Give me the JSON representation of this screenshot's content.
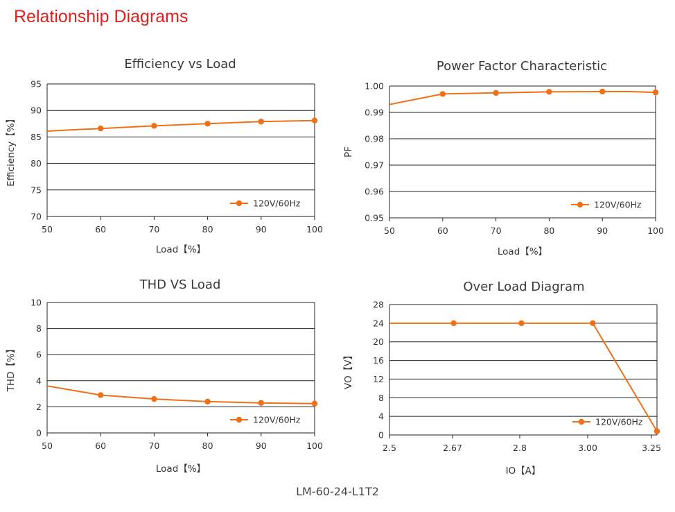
{
  "page": {
    "title": "Relationship Diagrams",
    "model": "LM-60-24-L1T2",
    "series_color": "#f07018",
    "title_color": "#e0201e"
  },
  "chart_data": [
    {
      "type": "line",
      "title": "Efficiency vs Load",
      "xlabel": "Load【%】",
      "ylabel": "Efficiency【%】",
      "xlim": [
        50,
        100
      ],
      "ylim": [
        70,
        95
      ],
      "xticks": [
        "50",
        "60",
        "70",
        "80",
        "90",
        "100"
      ],
      "yticks": [
        "70",
        "75",
        "80",
        "85",
        "90",
        "95"
      ],
      "grid": "horizontal",
      "legend_position": "bottom-right",
      "series": [
        {
          "name": "120V/60Hz",
          "line": [
            [
              50,
              86.1
            ],
            [
              60,
              86.6
            ],
            [
              70,
              87.1
            ],
            [
              80,
              87.5
            ],
            [
              90,
              87.9
            ],
            [
              100,
              88.1
            ]
          ],
          "markers": [
            [
              60,
              86.6
            ],
            [
              70,
              87.1
            ],
            [
              80,
              87.5
            ],
            [
              90,
              87.9
            ],
            [
              100,
              88.1
            ]
          ]
        }
      ]
    },
    {
      "type": "line",
      "title": "Power Factor Characteristic",
      "xlabel": "Load【%】",
      "ylabel": "PF",
      "xlim": [
        50,
        100
      ],
      "ylim": [
        0.95,
        1.0
      ],
      "xticks": [
        "50",
        "60",
        "70",
        "80",
        "90",
        "100"
      ],
      "yticks": [
        "0.95",
        "0.96",
        "0.97",
        "0.98",
        "0.99",
        "1.00"
      ],
      "grid": "horizontal",
      "legend_position": "bottom-right",
      "series": [
        {
          "name": "120V/60Hz",
          "line": [
            [
              50,
              0.993
            ],
            [
              60,
              0.997
            ],
            [
              70,
              0.9974
            ],
            [
              80,
              0.9978
            ],
            [
              90,
              0.9979
            ],
            [
              95,
              0.9979
            ],
            [
              100,
              0.9976
            ]
          ],
          "markers": [
            [
              60,
              0.997
            ],
            [
              70,
              0.9974
            ],
            [
              80,
              0.9978
            ],
            [
              90,
              0.9979
            ],
            [
              100,
              0.9976
            ]
          ]
        }
      ]
    },
    {
      "type": "line",
      "title": "THD VS Load",
      "xlabel": "Load【%】",
      "ylabel": "THD【%】",
      "xlim": [
        50,
        100
      ],
      "ylim": [
        0,
        10
      ],
      "xticks": [
        "50",
        "60",
        "70",
        "80",
        "90",
        "100"
      ],
      "yticks": [
        "0",
        "2",
        "4",
        "6",
        "8",
        "10"
      ],
      "grid": "horizontal",
      "legend_position": "bottom-right",
      "series": [
        {
          "name": "120V/60Hz",
          "line": [
            [
              50,
              3.6
            ],
            [
              60,
              2.9
            ],
            [
              70,
              2.6
            ],
            [
              80,
              2.4
            ],
            [
              90,
              2.3
            ],
            [
              100,
              2.25
            ]
          ],
          "markers": [
            [
              60,
              2.9
            ],
            [
              70,
              2.6
            ],
            [
              80,
              2.4
            ],
            [
              90,
              2.3
            ],
            [
              100,
              2.25
            ]
          ]
        }
      ]
    },
    {
      "type": "line",
      "title": "Over Load Diagram",
      "xlabel": "IO【A】",
      "ylabel": "VO【V】",
      "xlim": [
        2.5,
        3.25
      ],
      "ylim": [
        0,
        28
      ],
      "xticks": [
        "2.5",
        "2.67",
        "2.8",
        "3.00",
        "3.25"
      ],
      "yticks": [
        "0",
        "4",
        "8",
        "12",
        "16",
        "20",
        "24",
        "28"
      ],
      "grid": "horizontal",
      "legend_position": "bottom-right",
      "series": [
        {
          "name": "120V/60Hz",
          "line": [
            [
              2.5,
              24
            ],
            [
              2.68,
              24
            ],
            [
              2.87,
              24
            ],
            [
              3.07,
              24
            ],
            [
              3.25,
              0.8
            ]
          ],
          "markers": [
            [
              2.68,
              24
            ],
            [
              2.87,
              24
            ],
            [
              3.07,
              24
            ],
            [
              3.25,
              0.8
            ]
          ]
        }
      ]
    }
  ]
}
